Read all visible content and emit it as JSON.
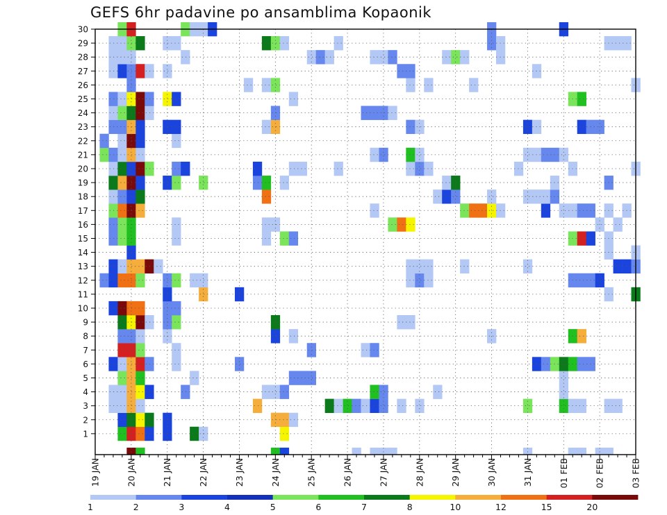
{
  "chart_data": {
    "type": "heatmap",
    "title": "GEFS 6hr padavine po ansamblima Kopaonik",
    "xlabel": "",
    "ylabel": "",
    "x_ticks": [
      "19 JAN",
      "20 JAN",
      "21 JAN",
      "22 JAN",
      "23 JAN",
      "24 JAN",
      "25 JAN",
      "26 JAN",
      "27 JAN",
      "28 JAN",
      "29 JAN",
      "30 JAN",
      "31 JAN",
      "01 FEB",
      "02 FEB",
      "03 FEB"
    ],
    "y_ticks": [
      1,
      2,
      3,
      4,
      5,
      6,
      7,
      8,
      9,
      10,
      11,
      12,
      13,
      14,
      15,
      16,
      17,
      18,
      19,
      20,
      21,
      22,
      23,
      24,
      25,
      26,
      27,
      28,
      29,
      30
    ],
    "grid": true,
    "time_steps_per_day": 4,
    "time_steps": 61,
    "legend": {
      "placement": "bottom",
      "labels": [
        "1",
        "2",
        "3",
        "4",
        "5",
        "6",
        "7",
        "8",
        "10",
        "12",
        "15",
        "20"
      ],
      "colors": [
        "#b3c8f5",
        "#6688ee",
        "#1a44dd",
        "#1530b8",
        "#7ae45a",
        "#20c020",
        "#0b7a1a",
        "#f5f500",
        "#f5ad3b",
        "#f07014",
        "#d42020",
        "#7a0a0a"
      ]
    },
    "color_scale": [
      "#b3c8f5",
      "#6688ee",
      "#1a44dd",
      "#7ae45a",
      "#20c020",
      "#0b7a1a",
      "#f5f500",
      "#f5ad3b",
      "#f07014",
      "#d42020",
      "#7a0a0a"
    ],
    "member_cells": {
      "1": [
        [
          3,
          4
        ],
        [
          4,
          9
        ],
        [
          5,
          8
        ],
        [
          6,
          2
        ],
        [
          8,
          2
        ],
        [
          11,
          5
        ],
        [
          12,
          0
        ],
        [
          21,
          6
        ]
      ],
      "2": [
        [
          3,
          2
        ],
        [
          4,
          5
        ],
        [
          5,
          6
        ],
        [
          6,
          5
        ],
        [
          8,
          2
        ],
        [
          20,
          7
        ],
        [
          21,
          7
        ],
        [
          22,
          0
        ]
      ],
      "3": [
        [
          2,
          0
        ],
        [
          3,
          0
        ],
        [
          4,
          7
        ],
        [
          5,
          0
        ],
        [
          18,
          7
        ],
        [
          26,
          5
        ],
        [
          27,
          0
        ],
        [
          28,
          4
        ],
        [
          29,
          1
        ],
        [
          30,
          0
        ],
        [
          31,
          2
        ],
        [
          32,
          1
        ],
        [
          34,
          0
        ],
        [
          36,
          0
        ],
        [
          48,
          3
        ],
        [
          52,
          4
        ],
        [
          53,
          0
        ],
        [
          54,
          0
        ],
        [
          57,
          0
        ],
        [
          58,
          0
        ]
      ],
      "4": [
        [
          2,
          0
        ],
        [
          3,
          0
        ],
        [
          4,
          7
        ],
        [
          5,
          6
        ],
        [
          6,
          2
        ],
        [
          10,
          1
        ],
        [
          19,
          0
        ],
        [
          20,
          0
        ],
        [
          21,
          1
        ],
        [
          31,
          4
        ],
        [
          32,
          1
        ],
        [
          38,
          0
        ],
        [
          52,
          0
        ]
      ],
      "5": [
        [
          3,
          3
        ],
        [
          4,
          7
        ],
        [
          5,
          4
        ],
        [
          11,
          0
        ],
        [
          22,
          1
        ],
        [
          23,
          1
        ],
        [
          24,
          1
        ],
        [
          52,
          0
        ]
      ],
      "6": [
        [
          2,
          2
        ],
        [
          3,
          0
        ],
        [
          4,
          7
        ],
        [
          5,
          9
        ],
        [
          6,
          1
        ],
        [
          9,
          0
        ],
        [
          16,
          1
        ],
        [
          49,
          2
        ],
        [
          50,
          1
        ],
        [
          51,
          3
        ],
        [
          52,
          5
        ],
        [
          53,
          4
        ],
        [
          54,
          1
        ],
        [
          55,
          1
        ]
      ],
      "7": [
        [
          3,
          9
        ],
        [
          4,
          9
        ],
        [
          5,
          3
        ],
        [
          9,
          0
        ],
        [
          24,
          1
        ],
        [
          30,
          0
        ],
        [
          31,
          1
        ]
      ],
      "8": [
        [
          3,
          1
        ],
        [
          4,
          1
        ],
        [
          5,
          0
        ],
        [
          8,
          0
        ],
        [
          20,
          2
        ],
        [
          22,
          0
        ],
        [
          44,
          0
        ],
        [
          53,
          4
        ],
        [
          54,
          7
        ]
      ],
      "9": [
        [
          3,
          5
        ],
        [
          4,
          6
        ],
        [
          5,
          10
        ],
        [
          6,
          0
        ],
        [
          8,
          1
        ],
        [
          9,
          3
        ],
        [
          20,
          5
        ],
        [
          34,
          0
        ],
        [
          35,
          0
        ]
      ],
      "10": [
        [
          2,
          2
        ],
        [
          3,
          10
        ],
        [
          4,
          8
        ],
        [
          5,
          8
        ],
        [
          8,
          1
        ],
        [
          9,
          1
        ]
      ],
      "11": [
        [
          8,
          2
        ],
        [
          12,
          7
        ],
        [
          16,
          2
        ],
        [
          57,
          0
        ],
        [
          60,
          5
        ]
      ],
      "12": [
        [
          1,
          1
        ],
        [
          2,
          2
        ],
        [
          3,
          8
        ],
        [
          4,
          8
        ],
        [
          5,
          3
        ],
        [
          8,
          1
        ],
        [
          9,
          3
        ],
        [
          11,
          0
        ],
        [
          12,
          0
        ],
        [
          35,
          0
        ],
        [
          36,
          1
        ],
        [
          37,
          0
        ],
        [
          53,
          1
        ],
        [
          54,
          1
        ],
        [
          55,
          1
        ],
        [
          56,
          2
        ]
      ],
      "13": [
        [
          2,
          2
        ],
        [
          3,
          0
        ],
        [
          4,
          7
        ],
        [
          5,
          7
        ],
        [
          6,
          10
        ],
        [
          7,
          0
        ],
        [
          35,
          0
        ],
        [
          36,
          0
        ],
        [
          37,
          0
        ],
        [
          41,
          0
        ],
        [
          48,
          0
        ],
        [
          58,
          2
        ],
        [
          59,
          2
        ],
        [
          60,
          1
        ]
      ],
      "14": [
        [
          4,
          2
        ],
        [
          57,
          0
        ],
        [
          60,
          0
        ]
      ],
      "15": [
        [
          2,
          1
        ],
        [
          3,
          3
        ],
        [
          4,
          4
        ],
        [
          9,
          0
        ],
        [
          19,
          0
        ],
        [
          21,
          3
        ],
        [
          22,
          1
        ],
        [
          53,
          3
        ],
        [
          54,
          9
        ],
        [
          55,
          2
        ],
        [
          57,
          0
        ]
      ],
      "16": [
        [
          2,
          1
        ],
        [
          3,
          3
        ],
        [
          4,
          4
        ],
        [
          9,
          0
        ],
        [
          19,
          0
        ],
        [
          20,
          0
        ],
        [
          33,
          3
        ],
        [
          34,
          8
        ],
        [
          35,
          6
        ],
        [
          56,
          0
        ],
        [
          58,
          0
        ]
      ],
      "17": [
        [
          2,
          3
        ],
        [
          3,
          8
        ],
        [
          4,
          10
        ],
        [
          5,
          7
        ],
        [
          31,
          0
        ],
        [
          41,
          3
        ],
        [
          42,
          8
        ],
        [
          43,
          8
        ],
        [
          44,
          6
        ],
        [
          45,
          0
        ],
        [
          50,
          2
        ],
        [
          52,
          0
        ],
        [
          53,
          0
        ],
        [
          54,
          1
        ],
        [
          55,
          1
        ],
        [
          57,
          0
        ],
        [
          59,
          0
        ]
      ],
      "18": [
        [
          2,
          0
        ],
        [
          3,
          1
        ],
        [
          4,
          2
        ],
        [
          5,
          5
        ],
        [
          19,
          8
        ],
        [
          38,
          0
        ],
        [
          39,
          2
        ],
        [
          40,
          1
        ],
        [
          44,
          0
        ],
        [
          48,
          0
        ],
        [
          49,
          0
        ],
        [
          50,
          0
        ],
        [
          51,
          1
        ]
      ],
      "19": [
        [
          2,
          5
        ],
        [
          3,
          7
        ],
        [
          4,
          10
        ],
        [
          5,
          2
        ],
        [
          8,
          2
        ],
        [
          9,
          3
        ],
        [
          12,
          3
        ],
        [
          18,
          1
        ],
        [
          19,
          4
        ],
        [
          21,
          0
        ],
        [
          39,
          0
        ],
        [
          40,
          5
        ],
        [
          51,
          0
        ],
        [
          57,
          1
        ]
      ],
      "20": [
        [
          2,
          0
        ],
        [
          3,
          5
        ],
        [
          4,
          2
        ],
        [
          5,
          10
        ],
        [
          6,
          3
        ],
        [
          9,
          1
        ],
        [
          10,
          2
        ],
        [
          18,
          2
        ],
        [
          22,
          0
        ],
        [
          23,
          0
        ],
        [
          27,
          0
        ],
        [
          35,
          0
        ],
        [
          36,
          1
        ],
        [
          37,
          0
        ],
        [
          47,
          0
        ],
        [
          53,
          0
        ],
        [
          60,
          0
        ]
      ],
      "21": [
        [
          1,
          3
        ],
        [
          2,
          1
        ],
        [
          3,
          0
        ],
        [
          4,
          7
        ],
        [
          5,
          0
        ],
        [
          31,
          0
        ],
        [
          32,
          1
        ],
        [
          35,
          4
        ],
        [
          36,
          0
        ],
        [
          48,
          0
        ],
        [
          49,
          0
        ],
        [
          50,
          1
        ],
        [
          51,
          1
        ],
        [
          52,
          0
        ]
      ],
      "22": [
        [
          1,
          1
        ],
        [
          3,
          0
        ],
        [
          4,
          10
        ],
        [
          5,
          2
        ],
        [
          9,
          0
        ]
      ],
      "23": [
        [
          2,
          1
        ],
        [
          3,
          1
        ],
        [
          4,
          7
        ],
        [
          5,
          2
        ],
        [
          8,
          2
        ],
        [
          9,
          2
        ],
        [
          19,
          0
        ],
        [
          20,
          7
        ],
        [
          35,
          1
        ],
        [
          36,
          0
        ],
        [
          48,
          2
        ],
        [
          49,
          0
        ],
        [
          54,
          2
        ],
        [
          55,
          1
        ],
        [
          56,
          1
        ]
      ],
      "24": [
        [
          2,
          0
        ],
        [
          3,
          3
        ],
        [
          4,
          5
        ],
        [
          5,
          10
        ],
        [
          6,
          0
        ],
        [
          20,
          1
        ],
        [
          30,
          1
        ],
        [
          31,
          1
        ],
        [
          32,
          1
        ],
        [
          33,
          0
        ]
      ],
      "25": [
        [
          2,
          1
        ],
        [
          3,
          0
        ],
        [
          4,
          6
        ],
        [
          5,
          10
        ],
        [
          6,
          1
        ],
        [
          8,
          6
        ],
        [
          9,
          2
        ],
        [
          22,
          0
        ],
        [
          53,
          3
        ],
        [
          54,
          4
        ]
      ],
      "26": [
        [
          4,
          1
        ],
        [
          17,
          0
        ],
        [
          19,
          0
        ],
        [
          20,
          3
        ],
        [
          35,
          0
        ],
        [
          37,
          0
        ],
        [
          42,
          0
        ],
        [
          60,
          0
        ]
      ],
      "27": [
        [
          2,
          0
        ],
        [
          3,
          2
        ],
        [
          4,
          1
        ],
        [
          5,
          9
        ],
        [
          6,
          0
        ],
        [
          8,
          0
        ],
        [
          34,
          1
        ],
        [
          35,
          1
        ],
        [
          49,
          0
        ]
      ],
      "28": [
        [
          2,
          0
        ],
        [
          3,
          0
        ],
        [
          4,
          0
        ],
        [
          10,
          0
        ],
        [
          24,
          0
        ],
        [
          25,
          1
        ],
        [
          26,
          0
        ],
        [
          31,
          0
        ],
        [
          32,
          0
        ],
        [
          33,
          1
        ],
        [
          39,
          0
        ],
        [
          40,
          3
        ],
        [
          41,
          0
        ],
        [
          45,
          0
        ]
      ],
      "29": [
        [
          2,
          0
        ],
        [
          3,
          0
        ],
        [
          4,
          3
        ],
        [
          5,
          5
        ],
        [
          8,
          0
        ],
        [
          9,
          0
        ],
        [
          19,
          5
        ],
        [
          20,
          3
        ],
        [
          21,
          0
        ],
        [
          27,
          0
        ],
        [
          44,
          1
        ],
        [
          45,
          0
        ],
        [
          57,
          0
        ],
        [
          58,
          0
        ],
        [
          59,
          0
        ]
      ],
      "30": [
        [
          3,
          3
        ],
        [
          4,
          9
        ],
        [
          10,
          3
        ],
        [
          11,
          0
        ],
        [
          12,
          0
        ],
        [
          13,
          2
        ],
        [
          44,
          1
        ],
        [
          52,
          2
        ]
      ]
    },
    "trailing_row_cells": [
      [
        4,
        10
      ],
      [
        5,
        4
      ],
      [
        20,
        4
      ],
      [
        21,
        2
      ],
      [
        29,
        0
      ],
      [
        31,
        0
      ],
      [
        32,
        0
      ],
      [
        33,
        0
      ],
      [
        48,
        0
      ],
      [
        53,
        0
      ],
      [
        54,
        0
      ],
      [
        56,
        0
      ],
      [
        57,
        0
      ]
    ]
  }
}
